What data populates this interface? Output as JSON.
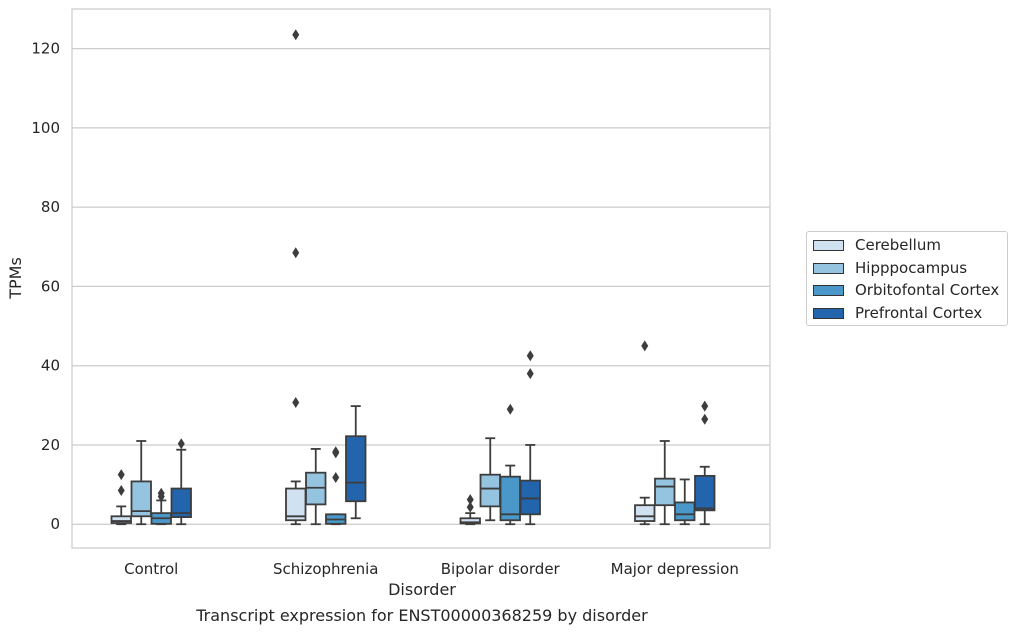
{
  "caption": "Transcript expression for ENST00000368259 by disorder",
  "chart_data": {
    "type": "box",
    "xlabel": "Disorder",
    "ylabel": "TPMs",
    "ylim": [
      -6,
      130
    ],
    "yticks": [
      0,
      20,
      40,
      60,
      80,
      100,
      120
    ],
    "grid": "horizontal",
    "legend_position": "right",
    "categories": [
      "Control",
      "Schizophrenia",
      "Bipolar disorder",
      "Major depression"
    ],
    "series": [
      {
        "name": "Cerebellum",
        "color": "#d0e1f2",
        "boxes": [
          {
            "whisker_low": 0,
            "q1": 0.3,
            "median": 0.8,
            "q3": 2.0,
            "whisker_high": 4.5,
            "outliers": [
              8.5,
              12.5
            ]
          },
          {
            "whisker_low": 0,
            "q1": 1.0,
            "median": 2.0,
            "q3": 9.0,
            "whisker_high": 10.8,
            "outliers": [
              30.7,
              68.5,
              123.5
            ]
          },
          {
            "whisker_low": 0,
            "q1": 0.2,
            "median": 0.5,
            "q3": 1.5,
            "whisker_high": 2.8,
            "outliers": [
              4.3,
              6.2
            ]
          },
          {
            "whisker_low": 0,
            "q1": 0.8,
            "median": 2.0,
            "q3": 4.8,
            "whisker_high": 6.7,
            "outliers": [
              45.0
            ]
          }
        ]
      },
      {
        "name": "Hipppocampus",
        "color": "#94c4df",
        "boxes": [
          {
            "whisker_low": 0,
            "q1": 2.0,
            "median": 3.3,
            "q3": 10.8,
            "whisker_high": 21.0,
            "outliers": []
          },
          {
            "whisker_low": 0,
            "q1": 5.0,
            "median": 9.2,
            "q3": 13.0,
            "whisker_high": 19.0,
            "outliers": []
          },
          {
            "whisker_low": 1.0,
            "q1": 4.5,
            "median": 9.0,
            "q3": 12.5,
            "whisker_high": 21.7,
            "outliers": []
          },
          {
            "whisker_low": 0,
            "q1": 4.8,
            "median": 9.5,
            "q3": 11.5,
            "whisker_high": 21.0,
            "outliers": []
          }
        ]
      },
      {
        "name": "Orbitofontal Cortex",
        "color": "#4a98c9",
        "boxes": [
          {
            "whisker_low": 0,
            "q1": 0.1,
            "median": 1.5,
            "q3": 2.8,
            "whisker_high": 6.0,
            "outliers": [
              7.0,
              7.8
            ]
          },
          {
            "whisker_low": 0,
            "q1": 0.1,
            "median": 1.2,
            "q3": 2.5,
            "whisker_high": 2.5,
            "outliers": [
              11.8,
              18.0,
              18.3
            ]
          },
          {
            "whisker_low": 0,
            "q1": 1.0,
            "median": 2.5,
            "q3": 12.0,
            "whisker_high": 14.8,
            "outliers": [
              29.0
            ]
          },
          {
            "whisker_low": 0,
            "q1": 1.0,
            "median": 2.5,
            "q3": 5.5,
            "whisker_high": 11.3,
            "outliers": []
          }
        ]
      },
      {
        "name": "Prefrontal Cortex",
        "color": "#2265ac",
        "boxes": [
          {
            "whisker_low": 0,
            "q1": 1.8,
            "median": 2.8,
            "q3": 9.0,
            "whisker_high": 18.8,
            "outliers": [
              20.3
            ]
          },
          {
            "whisker_low": 1.5,
            "q1": 5.8,
            "median": 10.5,
            "q3": 22.2,
            "whisker_high": 29.8,
            "outliers": []
          },
          {
            "whisker_low": 0,
            "q1": 2.5,
            "median": 6.5,
            "q3": 11.0,
            "whisker_high": 20.0,
            "outliers": [
              38.0,
              42.5
            ]
          },
          {
            "whisker_low": 0,
            "q1": 3.5,
            "median": 4.0,
            "q3": 12.2,
            "whisker_high": 14.5,
            "outliers": [
              26.5,
              29.8
            ]
          }
        ]
      }
    ]
  }
}
